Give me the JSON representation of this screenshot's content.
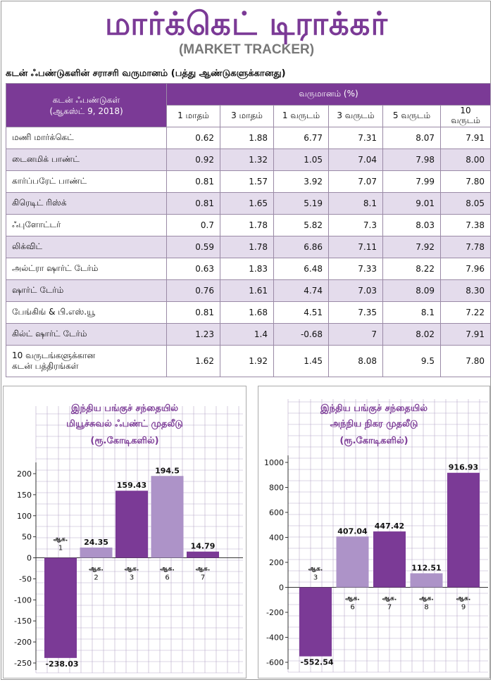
{
  "header": {
    "title": "மார்க்கெட் டிராக்கர்",
    "subtitle": "(MARKET TRACKER)"
  },
  "table": {
    "caption": "கடன் ஃபண்டுகளின் சராசரி வருமானம் (பத்து ஆண்டுகளுக்கானது)",
    "fund_header": "கடன் ஃபண்டுகள்",
    "fund_date": "(ஆகஸ்ட் 9, 2018)",
    "yield_header": "வருமானம் (%)",
    "periods": [
      "1 மாதம்",
      "3 மாதம்",
      "1 வருடம்",
      "3 வருடம்",
      "5 வருடம்",
      "10 வருடம்"
    ],
    "rows": [
      {
        "name": "மணி மார்க்கெட்",
        "values": [
          "0.62",
          "1.88",
          "6.77",
          "7.31",
          "8.07",
          "7.91"
        ]
      },
      {
        "name": "டைனமிக் பாண்ட்",
        "values": [
          "0.92",
          "1.32",
          "1.05",
          "7.04",
          "7.98",
          "8.00"
        ]
      },
      {
        "name": "கார்ப்பரேட் பாண்ட்",
        "values": [
          "0.81",
          "1.57",
          "3.92",
          "7.07",
          "7.99",
          "7.80"
        ]
      },
      {
        "name": "கிரெடிட் ரிஸ்க்",
        "values": [
          "0.81",
          "1.65",
          "5.19",
          "8.1",
          "9.01",
          "8.05"
        ]
      },
      {
        "name": "ஃபுளோட்டர்",
        "values": [
          "0.7",
          "1.78",
          "5.82",
          "7.3",
          "8.03",
          "7.38"
        ]
      },
      {
        "name": "லிக்விட்",
        "values": [
          "0.59",
          "1.78",
          "6.86",
          "7.11",
          "7.92",
          "7.78"
        ]
      },
      {
        "name": "அல்ட்ரா ஷார்ட் டேர்ம்",
        "values": [
          "0.63",
          "1.83",
          "6.48",
          "7.33",
          "8.22",
          "7.96"
        ]
      },
      {
        "name": "ஷார்ட் டேர்ம்",
        "values": [
          "0.76",
          "1.61",
          "4.74",
          "7.03",
          "8.09",
          "8.30"
        ]
      },
      {
        "name": "பேங்கிங் & பி.எஸ்.யூ",
        "values": [
          "0.81",
          "1.68",
          "4.51",
          "7.35",
          "8.1",
          "7.22"
        ]
      },
      {
        "name": "கில்ட் ஷார்ட் டேர்ம்",
        "values": [
          "1.23",
          "1.4",
          "-0.68",
          "7",
          "8.02",
          "7.91"
        ]
      },
      {
        "name_line1": "10 வருடங்களுக்கான",
        "name_line2": "கடன் பத்திரங்கள்",
        "values": [
          "1.62",
          "1.92",
          "1.45",
          "8.08",
          "9.5",
          "7.80"
        ]
      }
    ]
  },
  "chart_data": [
    {
      "type": "bar",
      "title_lines": [
        "இந்திய பங்குச் சந்தையில்",
        "மியூச்சுவல் ஃபண்ட் முதலீடு",
        "(ரூ.கோடிகளில்)"
      ],
      "month_label": "ஆக.",
      "categories": [
        "1",
        "2",
        "3",
        "6",
        "7"
      ],
      "values": [
        -238.03,
        24.35,
        159.43,
        194.5,
        14.79
      ],
      "value_labels": [
        "-238.03",
        "24.35",
        "159.43",
        "194.5",
        "14.79"
      ],
      "yticks": [
        200,
        150,
        100,
        50,
        0,
        -50,
        -100,
        -150,
        -200,
        -250
      ],
      "ylim": [
        -250,
        210
      ],
      "bar_colors": [
        "#7b3a96",
        "#ad93c8",
        "#7b3a96",
        "#ad93c8",
        "#7b3a96"
      ],
      "grid": true
    },
    {
      "type": "bar",
      "title_lines": [
        "இந்திய பங்குச் சந்தையில்",
        "அந்நிய நிகர முதலீடு",
        "(ரூ.கோடிகளில்)"
      ],
      "month_label": "ஆக.",
      "categories": [
        "3",
        "6",
        "7",
        "8",
        "9"
      ],
      "values": [
        -552.54,
        407.04,
        447.42,
        112.51,
        916.93
      ],
      "value_labels": [
        "-552.54",
        "407.04",
        "447.42",
        "112.51",
        "916.93"
      ],
      "yticks": [
        1000,
        800,
        600,
        400,
        200,
        0,
        -200,
        -400,
        -600
      ],
      "ylim": [
        -600,
        1000
      ],
      "bar_colors": [
        "#7b3a96",
        "#ad93c8",
        "#7b3a96",
        "#ad93c8",
        "#7b3a96"
      ],
      "grid": true
    }
  ],
  "colors": {
    "accent": "#7b3a96",
    "accent_light": "#ad93c8",
    "row_alt": "#e4dcec",
    "grid": "#b7a9c9"
  }
}
